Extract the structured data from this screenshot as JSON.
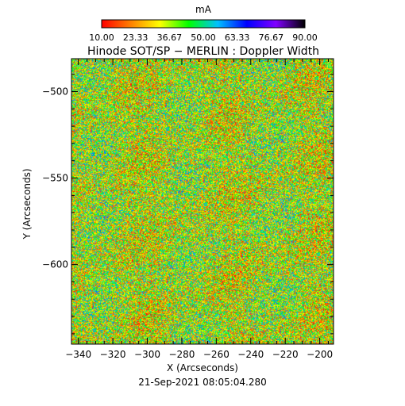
{
  "chart_data": {
    "type": "heatmap",
    "title": "Hinode SOT/SP − MERLIN : Doppler Width",
    "xlabel": "X (Arcseconds)",
    "ylabel": "Y (Arcseconds)",
    "xlim": [
      -344,
      -192
    ],
    "ylim": [
      -646,
      -481
    ],
    "x_ticks": [
      -340,
      -320,
      -300,
      -280,
      -260,
      -240,
      -220,
      -200
    ],
    "x_tick_labels": [
      "−340",
      "−320",
      "−300",
      "−280",
      "−260",
      "−240",
      "−220",
      "−200"
    ],
    "y_ticks": [
      -500,
      -550,
      -600
    ],
    "y_tick_labels": [
      "−500",
      "−550",
      "−600"
    ],
    "colorbar": {
      "unit": "mA",
      "min": 10.0,
      "max": 90.0,
      "tick_labels": [
        "10.00",
        "23.33",
        "36.67",
        "50.00",
        "63.33",
        "76.67",
        "90.00"
      ],
      "colormap": [
        "#ff0000",
        "#ff8000",
        "#ffff00",
        "#00ff00",
        "#00c0ff",
        "#0000ff",
        "#8000ff",
        "#000000"
      ]
    },
    "field_description_values": {
      "dominant_range": [
        20,
        55
      ],
      "dominant_colors": [
        "#ff3000",
        "#ff9000",
        "#e8e800",
        "#20e020"
      ]
    },
    "timestamp": "21-Sep-2021 08:05:04.280",
    "grid": false
  }
}
